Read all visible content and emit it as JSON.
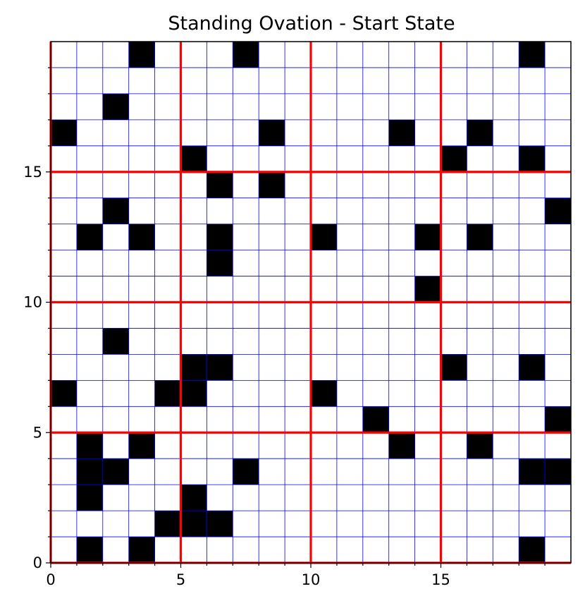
{
  "chart_data": {
    "type": "heatmap",
    "title": "Standing Ovation - Start State",
    "grid_size": 20,
    "xlim": [
      0,
      20
    ],
    "ylim": [
      0,
      20
    ],
    "xticks": [
      0,
      5,
      10,
      15
    ],
    "yticks": [
      0,
      5,
      10,
      15
    ],
    "minor_tick_step": 1,
    "grid": true,
    "block_size": 5,
    "colors": {
      "standing": "#000000",
      "seated": "#ffffff",
      "cell_grid": "#0000ff",
      "block_lines": "#ff0000",
      "axes": "#000000"
    },
    "standing_cells": [
      [
        3,
        19
      ],
      [
        7,
        19
      ],
      [
        18,
        19
      ],
      [
        2,
        17
      ],
      [
        0,
        16
      ],
      [
        8,
        16
      ],
      [
        13,
        16
      ],
      [
        16,
        16
      ],
      [
        5,
        15
      ],
      [
        15,
        15
      ],
      [
        18,
        15
      ],
      [
        6,
        14
      ],
      [
        8,
        14
      ],
      [
        2,
        13
      ],
      [
        19,
        13
      ],
      [
        1,
        12
      ],
      [
        3,
        12
      ],
      [
        6,
        12
      ],
      [
        10,
        12
      ],
      [
        14,
        12
      ],
      [
        16,
        12
      ],
      [
        6,
        11
      ],
      [
        14,
        10
      ],
      [
        2,
        8
      ],
      [
        5,
        7
      ],
      [
        6,
        7
      ],
      [
        15,
        7
      ],
      [
        18,
        7
      ],
      [
        0,
        6
      ],
      [
        4,
        6
      ],
      [
        5,
        6
      ],
      [
        10,
        6
      ],
      [
        12,
        5
      ],
      [
        19,
        5
      ],
      [
        1,
        4
      ],
      [
        3,
        4
      ],
      [
        13,
        4
      ],
      [
        16,
        4
      ],
      [
        1,
        3
      ],
      [
        2,
        3
      ],
      [
        7,
        3
      ],
      [
        18,
        3
      ],
      [
        19,
        3
      ],
      [
        1,
        2
      ],
      [
        5,
        2
      ],
      [
        4,
        1
      ],
      [
        5,
        1
      ],
      [
        6,
        1
      ],
      [
        1,
        0
      ],
      [
        3,
        0
      ],
      [
        18,
        0
      ]
    ]
  }
}
